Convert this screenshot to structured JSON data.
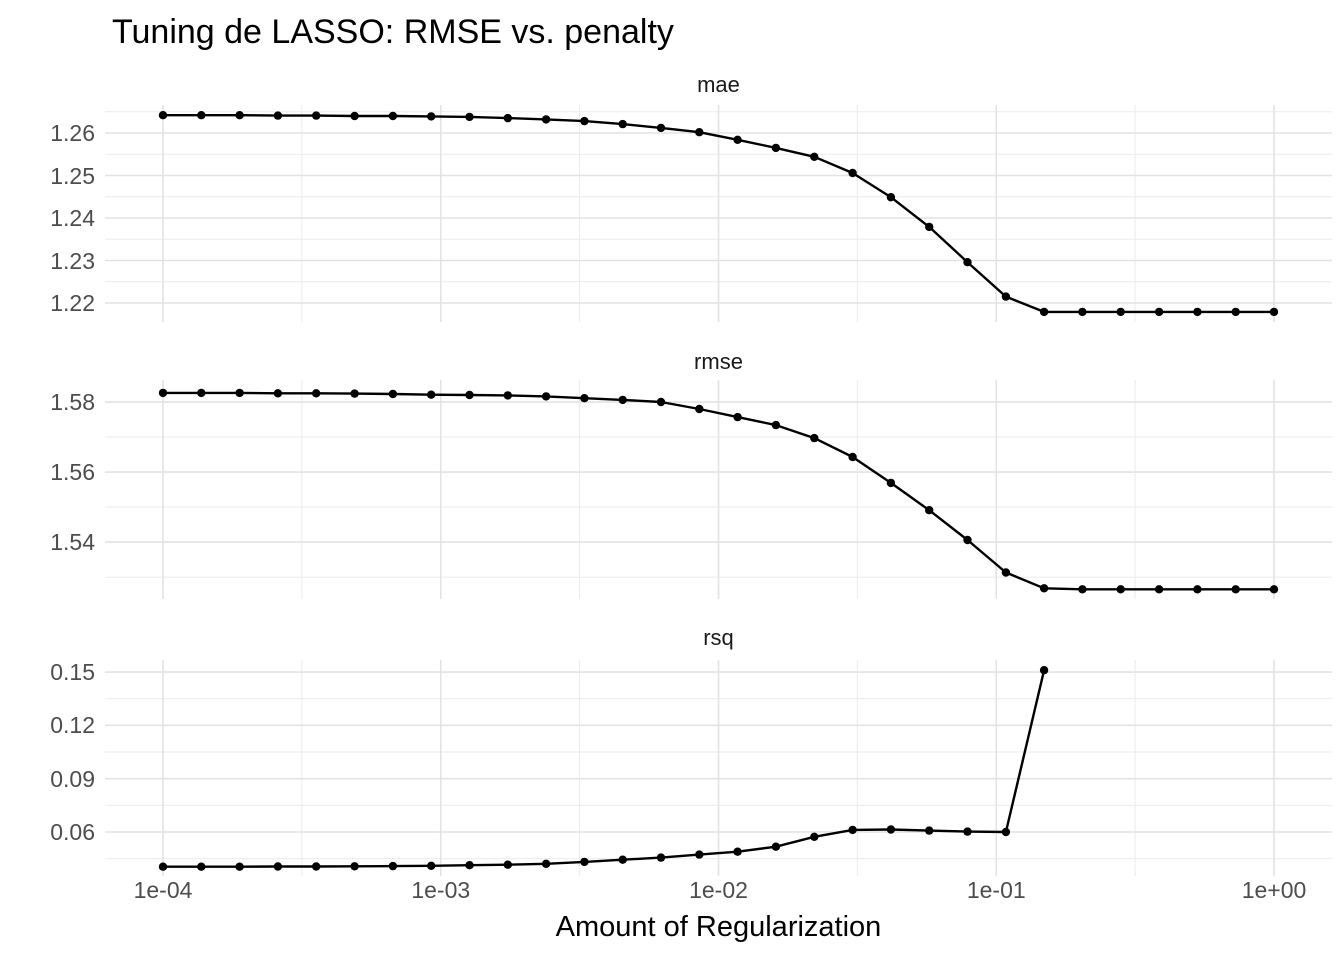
{
  "title": "Tuning de LASSO: RMSE vs. penalty",
  "chart_data": {
    "type": "line",
    "title": "Tuning de LASSO: RMSE vs. penalty",
    "xlabel": "Amount of Regularization",
    "x_scale": "log10",
    "x_range": [
      0.0001,
      1.0
    ],
    "grid": true,
    "legend": "none",
    "line_color": "#000000",
    "point_color": "#000000",
    "x_tick_labels": [
      "1e-04",
      "1e-03",
      "1e-02",
      "1e-01",
      "1e+00"
    ],
    "x_tick_values": [
      0.0001,
      0.001,
      0.01,
      0.1,
      1.0
    ],
    "x_minor": [
      0.0003162,
      0.003162,
      0.03162,
      0.3162
    ],
    "x": [
      0.0001,
      0.0001374,
      0.0001887,
      0.0002593,
      0.0003562,
      0.0004894,
      0.0006723,
      0.0009237,
      0.001269,
      0.001743,
      0.002395,
      0.00329,
      0.00452,
      0.00621,
      0.008532,
      0.01172,
      0.0161,
      0.02212,
      0.03039,
      0.04175,
      0.05736,
      0.0788,
      0.1083,
      0.1487,
      0.2043,
      0.2807,
      0.3857,
      0.5298,
      0.7279,
      1.0
    ],
    "facets": [
      {
        "label": "mae",
        "ylim": [
          1.21553,
          1.26659
        ],
        "yticks": [
          1.26,
          1.25,
          1.24,
          1.23,
          1.22
        ],
        "ytick_labels": [
          "1.26",
          "1.25",
          "1.24",
          "1.23",
          "1.22"
        ],
        "y_minor": [
          1.265,
          1.255,
          1.245,
          1.235,
          1.225
        ],
        "values": [
          1.2642,
          1.2642,
          1.2642,
          1.2641,
          1.2641,
          1.264,
          1.264,
          1.2639,
          1.2638,
          1.2635,
          1.2632,
          1.2628,
          1.2621,
          1.2612,
          1.2602,
          1.2584,
          1.2565,
          1.2544,
          1.2506,
          1.2449,
          1.2379,
          1.2296,
          1.2215,
          1.2179,
          1.2179,
          1.2179,
          1.2179,
          1.2179,
          1.2179,
          1.2179
        ]
      },
      {
        "label": "rmse",
        "ylim": [
          1.52374,
          1.58629
        ],
        "yticks": [
          1.58,
          1.56,
          1.54
        ],
        "ytick_labels": [
          "1.58",
          "1.56",
          "1.54"
        ],
        "y_minor": [
          1.57,
          1.55,
          1.53
        ],
        "values": [
          1.5826,
          1.5826,
          1.5826,
          1.5825,
          1.5825,
          1.5824,
          1.5823,
          1.5821,
          1.582,
          1.5819,
          1.5816,
          1.5811,
          1.5806,
          1.58,
          1.578,
          1.5757,
          1.5734,
          1.5697,
          1.5643,
          1.5569,
          1.5491,
          1.5406,
          1.5313,
          1.5268,
          1.5265,
          1.5265,
          1.5265,
          1.5265,
          1.5265,
          1.5265
        ]
      },
      {
        "label": "rsq",
        "ylim": [
          0.03524,
          0.15676
        ],
        "yticks": [
          0.15,
          0.12,
          0.09,
          0.06
        ],
        "ytick_labels": [
          "0.15",
          "0.12",
          "0.09",
          "0.06"
        ],
        "y_minor": [
          0.135,
          0.105,
          0.075,
          0.045
        ],
        "values": [
          0.0405,
          0.0405,
          0.0405,
          0.0406,
          0.0406,
          0.0407,
          0.0408,
          0.041,
          0.0413,
          0.0416,
          0.0421,
          0.0432,
          0.0444,
          0.0456,
          0.0473,
          0.0489,
          0.0517,
          0.0573,
          0.0612,
          0.0614,
          0.0608,
          0.0602,
          0.06,
          0.151
        ]
      }
    ]
  }
}
